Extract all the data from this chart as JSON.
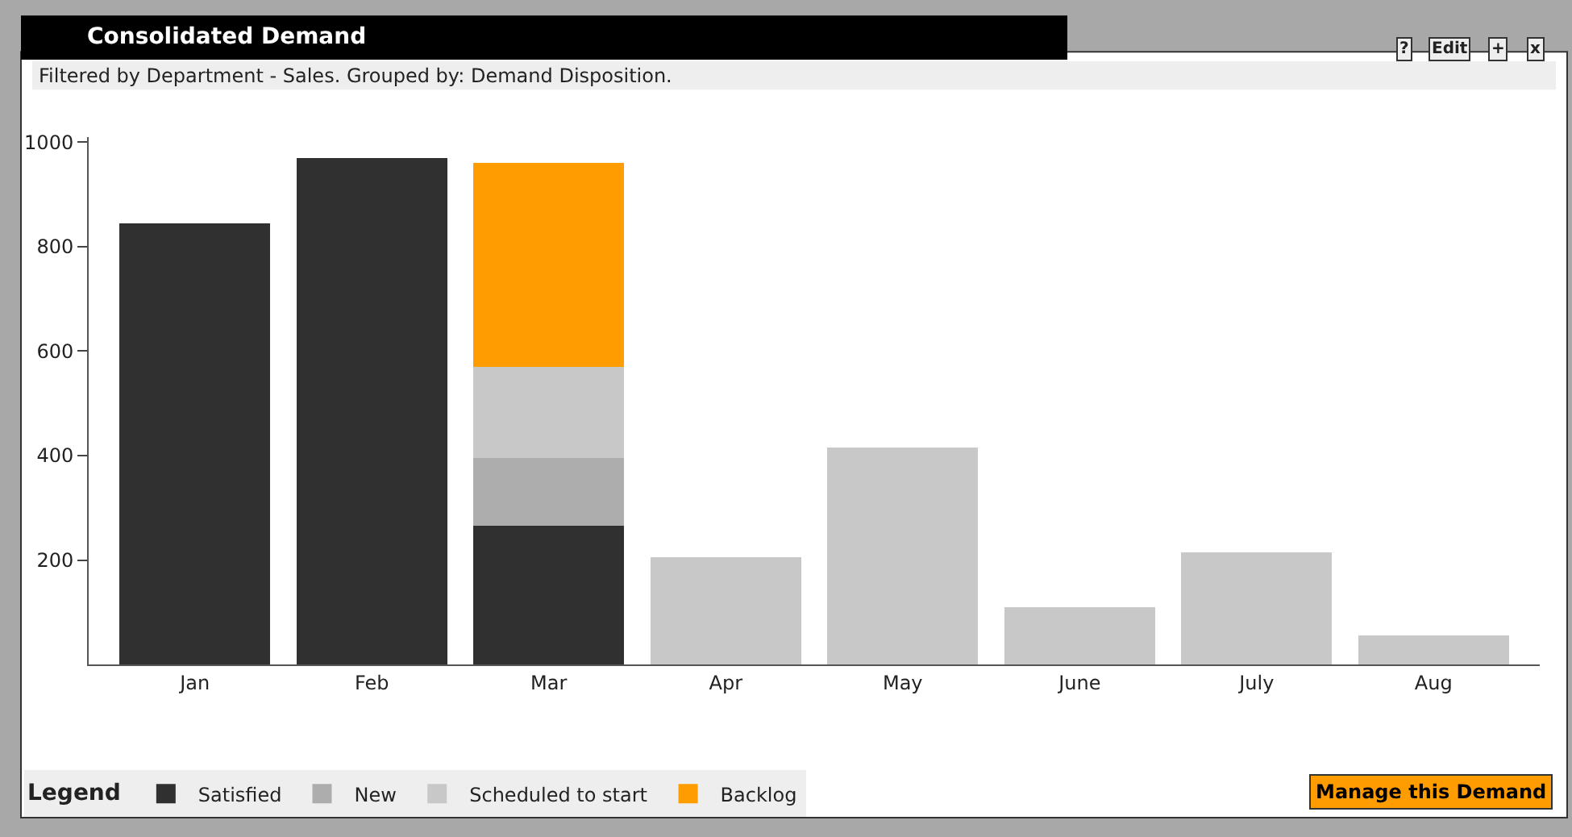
{
  "chart_data": {
    "type": "bar",
    "title": "Consolidated Demand",
    "subtitle": "Filtered by Department - Sales. Grouped by: Demand Disposition.",
    "categories": [
      "Jan",
      "Feb",
      "Mar",
      "Apr",
      "May",
      "June",
      "July",
      "Aug"
    ],
    "stacked": true,
    "series": [
      {
        "name": "Satisfied",
        "color": "#303030",
        "values": [
          845,
          970,
          265,
          null,
          null,
          null,
          null,
          null
        ]
      },
      {
        "name": "New",
        "color": "#adadad",
        "values": [
          null,
          null,
          130,
          null,
          null,
          null,
          null,
          null
        ]
      },
      {
        "name": "Scheduled to start",
        "color": "#c8c8c8",
        "values": [
          null,
          null,
          175,
          205,
          415,
          110,
          215,
          55
        ]
      },
      {
        "name": "Backlog",
        "color": "#ff9c00",
        "values": [
          null,
          null,
          390,
          null,
          null,
          null,
          null,
          null
        ]
      }
    ],
    "ylim": [
      0,
      1010
    ],
    "yticks": [
      200,
      400,
      600,
      800,
      1000
    ],
    "legend": "bottom left",
    "legend_title": "Legend",
    "annotations": [
      "?",
      "Edit",
      "+",
      "x",
      "Manage this Demand"
    ]
  }
}
